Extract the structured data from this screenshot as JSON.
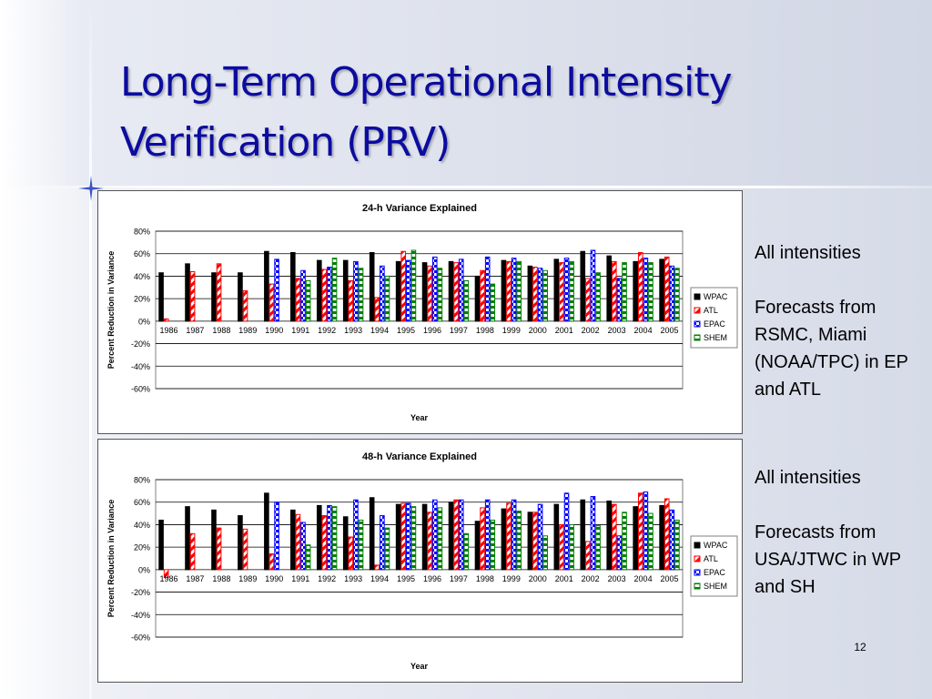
{
  "slide": {
    "title_line1": "Long-Term Operational Intensity",
    "title_line2": "Verification (PRV)",
    "page_number": "12",
    "colors": {
      "title": "#0c0ca0",
      "wpac": "#000000",
      "atl": "#ff0000",
      "epac": "#0000ff",
      "shem": "#008000"
    }
  },
  "notes": [
    {
      "line1": "All intensities",
      "line2": "Forecasts from RSMC, Miami (NOAA/TPC) in EP and ATL"
    },
    {
      "line1": "All intensities",
      "line2": "Forecasts from USA/JTWC in WP and SH"
    }
  ],
  "chart_data": [
    {
      "type": "bar",
      "title": "24-h Variance Explained",
      "xlabel": "Year",
      "ylabel": "Percent Reduction in Variance",
      "ylim": [
        -60,
        80
      ],
      "ytick_labels": [
        "80%",
        "60%",
        "40%",
        "20%",
        "0%",
        "-20%",
        "-40%",
        "-60%"
      ],
      "grid": true,
      "legend_position": "right",
      "categories": [
        "1986",
        "1987",
        "1988",
        "1989",
        "1990",
        "1991",
        "1992",
        "1993",
        "1994",
        "1995",
        "1996",
        "1997",
        "1998",
        "1999",
        "2000",
        "2001",
        "2002",
        "2003",
        "2004",
        "2005"
      ],
      "series": [
        {
          "name": "WPAC",
          "values": [
            43,
            51,
            43,
            43,
            62,
            61,
            54,
            54,
            61,
            53,
            52,
            53,
            40,
            54,
            49,
            55,
            62,
            58,
            53,
            55
          ]
        },
        {
          "name": "ATL",
          "values": [
            2,
            44,
            51,
            27,
            33,
            38,
            46,
            36,
            21,
            62,
            49,
            52,
            45,
            53,
            48,
            52,
            38,
            53,
            61,
            57
          ]
        },
        {
          "name": "EPAC",
          "values": [
            null,
            null,
            null,
            null,
            55,
            45,
            48,
            53,
            49,
            54,
            57,
            55,
            57,
            56,
            47,
            56,
            63,
            38,
            56,
            49
          ]
        },
        {
          "name": "SHEM",
          "values": [
            null,
            null,
            null,
            null,
            null,
            36,
            56,
            47,
            40,
            63,
            47,
            36,
            33,
            53,
            45,
            53,
            43,
            52,
            52,
            47
          ]
        }
      ]
    },
    {
      "type": "bar",
      "title": "48-h Variance Explained",
      "xlabel": "Year",
      "ylabel": "Percent Reduction in Variance",
      "ylim": [
        -60,
        80
      ],
      "ytick_labels": [
        "80%",
        "60%",
        "40%",
        "20%",
        "0%",
        "-20%",
        "-40%",
        "-60%"
      ],
      "grid": true,
      "legend_position": "right",
      "categories": [
        "1986",
        "1987",
        "1988",
        "1989",
        "1990",
        "1991",
        "1992",
        "1993",
        "1994",
        "1995",
        "1996",
        "1997",
        "1998",
        "1999",
        "2000",
        "2001",
        "2002",
        "2003",
        "2004",
        "2005"
      ],
      "series": [
        {
          "name": "WPAC",
          "values": [
            44,
            56,
            53,
            48,
            68,
            53,
            57,
            47,
            64,
            58,
            58,
            60,
            43,
            54,
            51,
            58,
            62,
            61,
            56,
            57
          ]
        },
        {
          "name": "ATL",
          "values": [
            -7,
            32,
            37,
            36,
            14,
            49,
            48,
            29,
            4,
            59,
            51,
            62,
            55,
            59,
            51,
            40,
            25,
            58,
            68,
            63
          ]
        },
        {
          "name": "EPAC",
          "values": [
            null,
            null,
            null,
            null,
            60,
            42,
            57,
            62,
            48,
            59,
            62,
            62,
            62,
            62,
            58,
            68,
            65,
            30,
            69,
            53
          ]
        },
        {
          "name": "SHEM",
          "values": [
            null,
            null,
            null,
            null,
            null,
            22,
            56,
            44,
            37,
            56,
            55,
            32,
            44,
            52,
            30,
            40,
            39,
            51,
            50,
            44
          ]
        }
      ]
    }
  ]
}
